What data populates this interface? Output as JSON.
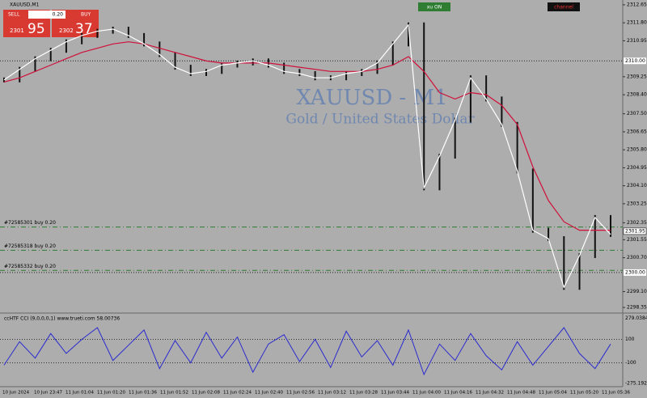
{
  "header": {
    "symbol": "XAUUSD,M1",
    "sell": "SELL",
    "buy": "BUY",
    "lot": "0.20",
    "sell_big": "2301",
    "sell_small": "95",
    "buy_big": "2302",
    "buy_small": "37",
    "toggle": "xu ON",
    "channel": "channel"
  },
  "watermark": {
    "title": "XAUUSD - M1",
    "subtitle": "Gold / United States Dollar"
  },
  "price_chart": {
    "ylim": [
      2298.2,
      2312.8
    ],
    "yticks": [
      {
        "value": 2312.65,
        "label": "2312.65"
      },
      {
        "value": 2311.8,
        "label": "2311.80"
      },
      {
        "value": 2310.95,
        "label": "2310.95"
      },
      {
        "value": 2309.25,
        "label": "2309.25"
      },
      {
        "value": 2308.4,
        "label": "2308.40"
      },
      {
        "value": 2307.5,
        "label": "2307.50"
      },
      {
        "value": 2306.65,
        "label": "2306.65"
      },
      {
        "value": 2305.8,
        "label": "2305.80"
      },
      {
        "value": 2304.95,
        "label": "2304.95"
      },
      {
        "value": 2304.1,
        "label": "2304.10"
      },
      {
        "value": 2303.25,
        "label": "2303.25"
      },
      {
        "value": 2302.35,
        "label": "2302.35"
      },
      {
        "value": 2301.55,
        "label": "2301.55"
      },
      {
        "value": 2300.7,
        "label": "2300.70"
      },
      {
        "value": 2299.1,
        "label": "2299.10"
      },
      {
        "value": 2298.35,
        "label": "2298.35"
      }
    ],
    "levels": [
      {
        "value": 2310,
        "label": "2310.00"
      },
      {
        "value": 2300,
        "label": "2300.00"
      }
    ],
    "bid": {
      "value": 2301.95,
      "label": "2301.95"
    },
    "orders": [
      {
        "value": 2302.15,
        "label": "#72585301 buy 0.20"
      },
      {
        "value": 2301.05,
        "label": "#72585318 buy 0.20"
      },
      {
        "value": 2300.1,
        "label": "#72585332 buy 0.20"
      }
    ],
    "close": [
      2309.1,
      2309.6,
      2310.1,
      2310.5,
      2310.9,
      2311.2,
      2311.4,
      2311.5,
      2311.2,
      2310.8,
      2310.3,
      2309.7,
      2309.4,
      2309.5,
      2309.8,
      2309.9,
      2310.0,
      2309.8,
      2309.5,
      2309.4,
      2309.2,
      2309.2,
      2309.4,
      2309.5,
      2309.9,
      2310.8,
      2311.7,
      2304.0,
      2305.5,
      2307.2,
      2309.2,
      2308.2,
      2307.0,
      2304.8,
      2302.0,
      2301.6,
      2299.3,
      2300.8,
      2302.6,
      2301.8
    ],
    "ma": [
      2309.0,
      2309.2,
      2309.5,
      2309.8,
      2310.1,
      2310.4,
      2310.6,
      2310.8,
      2310.9,
      2310.8,
      2310.6,
      2310.4,
      2310.2,
      2310.0,
      2309.9,
      2309.9,
      2309.9,
      2309.9,
      2309.8,
      2309.7,
      2309.6,
      2309.5,
      2309.5,
      2309.5,
      2309.6,
      2309.8,
      2310.2,
      2309.5,
      2308.5,
      2308.2,
      2308.5,
      2308.4,
      2307.9,
      2307.0,
      2305.0,
      2303.4,
      2302.4,
      2302.0,
      2302.0,
      2302.0
    ]
  },
  "indicator": {
    "name": "ccHTF CCI (9,0,0,0,1) www.trueti.com 58.00736",
    "ylim": [
      -290,
      290
    ],
    "yticks": [
      {
        "value": 279.03846,
        "label": "279.03846"
      },
      100,
      -100,
      {
        "value": -275.19231,
        "label": "-275.19231"
      }
    ],
    "values": [
      -120,
      80,
      -60,
      150,
      -20,
      100,
      200,
      -80,
      50,
      180,
      -150,
      90,
      -100,
      160,
      -60,
      120,
      -180,
      60,
      140,
      -90,
      100,
      -140,
      170,
      -50,
      90,
      -120,
      180,
      -200,
      60,
      -80,
      150,
      -40,
      -160,
      80,
      -120,
      40,
      200,
      -20,
      -150,
      60
    ]
  },
  "time_axis": [
    "10 Jun 2024",
    "10 Jun 23:47",
    "11 Jun 01:04",
    "11 Jun 01:20",
    "11 Jun 01:36",
    "11 Jun 01:52",
    "11 Jun 02:08",
    "11 Jun 02:24",
    "11 Jun 02:40",
    "11 Jun 02:56",
    "11 Jun 03:12",
    "11 Jun 03:28",
    "11 Jun 03:44",
    "11 Jun 04:00",
    "11 Jun 04:16",
    "11 Jun 04:32",
    "11 Jun 04:48",
    "11 Jun 05:04",
    "11 Jun 05:20",
    "11 Jun 05:36"
  ]
}
